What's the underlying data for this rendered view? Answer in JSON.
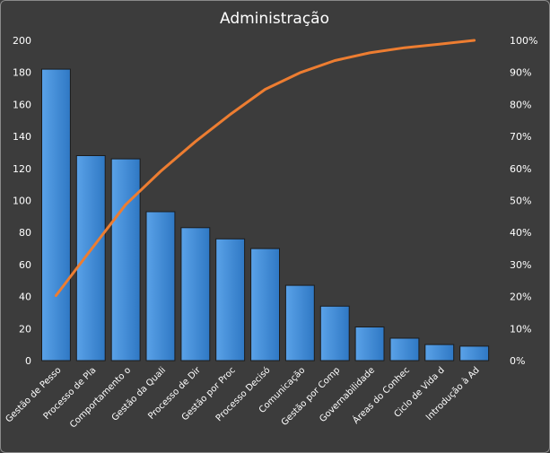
{
  "chart_data": {
    "type": "bar",
    "title": "Administração",
    "xlabel": "",
    "ylabel": "",
    "categories": [
      "Gestão de Pesso",
      "Processo de Pla",
      "Comportamento o",
      "Gestão da Quali",
      "Processo de Dir",
      "Gestão por Proc",
      "Processo Decisó",
      "Comunicação",
      "Gestão por Comp",
      "Governabilidade",
      "Áreas do Conhec",
      "Ciclo de Vida d",
      "Introdução à Ad"
    ],
    "series": [
      {
        "type": "bar",
        "axis": "left",
        "values": [
          182,
          128,
          126,
          93,
          83,
          76,
          70,
          47,
          34,
          21,
          14,
          10,
          9
        ]
      },
      {
        "type": "line",
        "axis": "right",
        "values": [
          20.3,
          34.6,
          48.7,
          59.1,
          68.4,
          76.9,
          84.7,
          89.9,
          93.7,
          96.1,
          97.7,
          98.8,
          100
        ]
      }
    ],
    "ylim": [
      0,
      200
    ],
    "yticks": [
      "0",
      "20",
      "40",
      "60",
      "80",
      "100",
      "120",
      "140",
      "160",
      "180",
      "200"
    ],
    "y2lim": [
      0,
      100
    ],
    "y2ticks": [
      "0%",
      "10%",
      "20%",
      "30%",
      "40%",
      "50%",
      "60%",
      "70%",
      "80%",
      "90%",
      "100%"
    ],
    "grid": false,
    "legend": "none",
    "colors": {
      "bar": "#3f8bd6",
      "line": "#ed7d31",
      "background": "#3c3c3c",
      "text": "#ffffff"
    }
  }
}
